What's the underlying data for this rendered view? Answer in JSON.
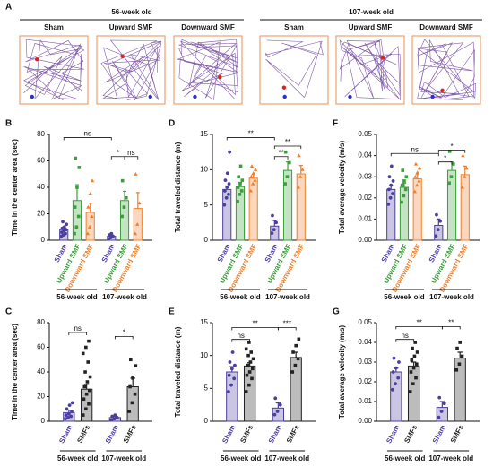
{
  "panel_a": {
    "letter": "A",
    "groups": [
      {
        "name": "56-week old",
        "panels": [
          "Sham",
          "Upward SMF",
          "Downward SMF"
        ]
      },
      {
        "name": "107-week old",
        "panels": [
          "Sham",
          "Upward SMF",
          "Downward SMF"
        ]
      }
    ]
  },
  "chart_data": [
    {
      "type": "bar",
      "panel": "B",
      "ylabel": "Time in the center area (sec)",
      "ylim": [
        0,
        80
      ],
      "yticks": [
        0,
        20,
        40,
        60,
        80
      ],
      "groups": [
        {
          "name": "56-week old",
          "bars": [
            {
              "name": "Sham",
              "color": "#4b3f9e",
              "value": 8,
              "error": 2,
              "points": [
                3,
                4,
                5,
                6,
                7,
                8,
                9,
                10,
                12,
                14
              ]
            },
            {
              "name": "Upward SMF",
              "color": "#3a9e3a",
              "value": 30,
              "error": 12,
              "points": [
                5,
                10,
                18,
                25,
                40,
                55,
                62
              ]
            },
            {
              "name": "Downward SMF",
              "color": "#f07f2a",
              "value": 21,
              "error": 7,
              "points": [
                5,
                10,
                18,
                25,
                35,
                45
              ]
            }
          ]
        },
        {
          "name": "107-week old",
          "bars": [
            {
              "name": "Sham",
              "color": "#4b3f9e",
              "value": 3,
              "error": 1,
              "points": [
                1,
                2,
                3,
                4,
                5
              ]
            },
            {
              "name": "Upward SMF",
              "color": "#3a9e3a",
              "value": 30,
              "error": 7,
              "points": [
                18,
                25,
                32,
                45
              ]
            },
            {
              "name": "Downward SMF",
              "color": "#f07f2a",
              "value": 24,
              "error": 12,
              "points": [
                5,
                12,
                28,
                50
              ]
            }
          ]
        }
      ],
      "annotations": [
        "ns",
        "*",
        "ns"
      ]
    },
    {
      "type": "bar",
      "panel": "D",
      "ylabel": "Total traveled distance (m)",
      "ylim": [
        0,
        15
      ],
      "yticks": [
        0,
        5,
        10,
        15
      ],
      "groups": [
        {
          "name": "56-week old",
          "bars": [
            {
              "name": "Sham",
              "color": "#4b3f9e",
              "value": 7.2,
              "error": 0.5,
              "points": [
                5,
                6,
                6.5,
                7,
                7.5,
                8,
                8.5,
                9.5,
                12.5
              ]
            },
            {
              "name": "Upward SMF",
              "color": "#3a9e3a",
              "value": 7.6,
              "error": 0.6,
              "points": [
                5.5,
                6.5,
                7,
                7.5,
                8,
                8.5,
                9,
                10.5
              ]
            },
            {
              "name": "Downward SMF",
              "color": "#f07f2a",
              "value": 8.8,
              "error": 0.5,
              "points": [
                7,
                8,
                8.5,
                9,
                9.5,
                10,
                10.5
              ]
            }
          ]
        },
        {
          "name": "107-week old",
          "bars": [
            {
              "name": "Sham",
              "color": "#4b3f9e",
              "value": 2,
              "error": 0.8,
              "points": [
                1,
                1.5,
                2.5,
                3.5
              ]
            },
            {
              "name": "Upward SMF",
              "color": "#3a9e3a",
              "value": 9.9,
              "error": 1.2,
              "points": [
                8,
                9,
                11,
                12.5
              ]
            },
            {
              "name": "Downward SMF",
              "color": "#f07f2a",
              "value": 9.4,
              "error": 1.2,
              "points": [
                7.5,
                9,
                10,
                12
              ]
            }
          ]
        }
      ],
      "annotations": [
        "**",
        "**",
        "**"
      ]
    },
    {
      "type": "bar",
      "panel": "F",
      "ylabel": "Total average velocity (m/s)",
      "ylim": [
        0,
        0.05
      ],
      "yticks": [
        {
          "value": 0,
          "label": "0.00"
        },
        {
          "value": 0.01,
          "label": "0.01"
        },
        {
          "value": 0.02,
          "label": "0.02"
        },
        {
          "value": 0.03,
          "label": "0.03"
        },
        {
          "value": 0.04,
          "label": "0.04"
        },
        {
          "value": 0.05,
          "label": "0.05"
        }
      ],
      "groups": [
        {
          "name": "56-week old",
          "bars": [
            {
              "name": "Sham",
              "color": "#4b3f9e",
              "value": 0.024,
              "error": 0.002,
              "points": [
                0.017,
                0.02,
                0.022,
                0.024,
                0.026,
                0.028,
                0.03,
                0.035
              ]
            },
            {
              "name": "Upward SMF",
              "color": "#3a9e3a",
              "value": 0.025,
              "error": 0.002,
              "points": [
                0.018,
                0.021,
                0.024,
                0.026,
                0.028,
                0.03,
                0.033
              ]
            },
            {
              "name": "Downward SMF",
              "color": "#f07f2a",
              "value": 0.029,
              "error": 0.002,
              "points": [
                0.023,
                0.026,
                0.028,
                0.03,
                0.032,
                0.034,
                0.036
              ]
            }
          ]
        },
        {
          "name": "107-week old",
          "bars": [
            {
              "name": "Sham",
              "color": "#4b3f9e",
              "value": 0.007,
              "error": 0.003,
              "points": [
                0.002,
                0.005,
                0.009,
                0.012
              ]
            },
            {
              "name": "Upward SMF",
              "color": "#3a9e3a",
              "value": 0.033,
              "error": 0.004,
              "points": [
                0.027,
                0.03,
                0.036,
                0.042
              ]
            },
            {
              "name": "Downward SMF",
              "color": "#f07f2a",
              "value": 0.031,
              "error": 0.004,
              "points": [
                0.025,
                0.03,
                0.034,
                0.04
              ]
            }
          ]
        }
      ],
      "annotations": [
        "ns",
        "*",
        "*"
      ]
    },
    {
      "type": "bar",
      "panel": "C",
      "ylabel": "Time in the center area (sec)",
      "ylim": [
        0,
        80
      ],
      "yticks": [
        0,
        20,
        40,
        60,
        80
      ],
      "groups": [
        {
          "name": "56-week old",
          "bars": [
            {
              "name": "Sham",
              "color": "#4b3f9e",
              "value": 7,
              "error": 2,
              "points": [
                2,
                3,
                4,
                5,
                6,
                8,
                10,
                13,
                15
              ]
            },
            {
              "name": "SMFs",
              "color": "#222222",
              "value": 26,
              "error": 4,
              "points": [
                5,
                10,
                14,
                18,
                22,
                25,
                28,
                32,
                36,
                40,
                48,
                55,
                60,
                65
              ]
            }
          ]
        },
        {
          "name": "107-week old",
          "bars": [
            {
              "name": "Sham",
              "color": "#4b3f9e",
              "value": 3,
              "error": 1,
              "points": [
                1,
                2,
                3,
                4,
                5
              ]
            },
            {
              "name": "SMFs",
              "color": "#222222",
              "value": 28,
              "error": 7,
              "points": [
                8,
                15,
                22,
                28,
                35,
                45,
                50
              ]
            }
          ]
        }
      ],
      "annotations": [
        "ns",
        "*"
      ]
    },
    {
      "type": "bar",
      "panel": "E",
      "ylabel": "Total traveled distance (m)",
      "ylim": [
        0,
        15
      ],
      "yticks": [
        0,
        5,
        10,
        15
      ],
      "groups": [
        {
          "name": "56-week old",
          "bars": [
            {
              "name": "Sham",
              "color": "#4b3f9e",
              "value": 7.5,
              "error": 0.8,
              "points": [
                4.5,
                5.5,
                6.5,
                7,
                8,
                8.5,
                9,
                10.5
              ]
            },
            {
              "name": "SMFs",
              "color": "#222222",
              "value": 8.4,
              "error": 0.5,
              "points": [
                4.5,
                5.5,
                6.5,
                7,
                7.5,
                8,
                8.5,
                9,
                9.5,
                10,
                10.5,
                11,
                12
              ]
            }
          ]
        },
        {
          "name": "107-week old",
          "bars": [
            {
              "name": "Sham",
              "color": "#4b3f9e",
              "value": 2,
              "error": 0.8,
              "points": [
                1,
                1.5,
                2.5,
                3.5
              ]
            },
            {
              "name": "SMFs",
              "color": "#222222",
              "value": 9.7,
              "error": 0.8,
              "points": [
                7.5,
                8.5,
                9.5,
                10.5,
                11.5,
                12.5
              ]
            }
          ]
        }
      ],
      "annotations": [
        "ns",
        "**",
        "***"
      ]
    },
    {
      "type": "bar",
      "panel": "G",
      "ylabel": "Total average velocity (m/s)",
      "ylim": [
        0,
        0.05
      ],
      "yticks": [
        {
          "value": 0,
          "label": "0.00"
        },
        {
          "value": 0.01,
          "label": "0.01"
        },
        {
          "value": 0.02,
          "label": "0.02"
        },
        {
          "value": 0.03,
          "label": "0.03"
        },
        {
          "value": 0.04,
          "label": "0.04"
        },
        {
          "value": 0.05,
          "label": "0.05"
        }
      ],
      "groups": [
        {
          "name": "56-week old",
          "bars": [
            {
              "name": "Sham",
              "color": "#4b3f9e",
              "value": 0.025,
              "error": 0.002,
              "points": [
                0.016,
                0.019,
                0.022,
                0.025,
                0.027,
                0.03,
                0.032
              ]
            },
            {
              "name": "SMFs",
              "color": "#222222",
              "value": 0.028,
              "error": 0.002,
              "points": [
                0.015,
                0.019,
                0.022,
                0.025,
                0.027,
                0.029,
                0.031,
                0.033,
                0.035,
                0.037,
                0.04
              ]
            }
          ]
        },
        {
          "name": "107-week old",
          "bars": [
            {
              "name": "Sham",
              "color": "#4b3f9e",
              "value": 0.007,
              "error": 0.003,
              "points": [
                0.002,
                0.005,
                0.009,
                0.012
              ]
            },
            {
              "name": "SMFs",
              "color": "#222222",
              "value": 0.032,
              "error": 0.003,
              "points": [
                0.026,
                0.029,
                0.033,
                0.037,
                0.04
              ]
            }
          ]
        }
      ],
      "annotations": [
        "ns",
        "**",
        "**"
      ]
    }
  ]
}
